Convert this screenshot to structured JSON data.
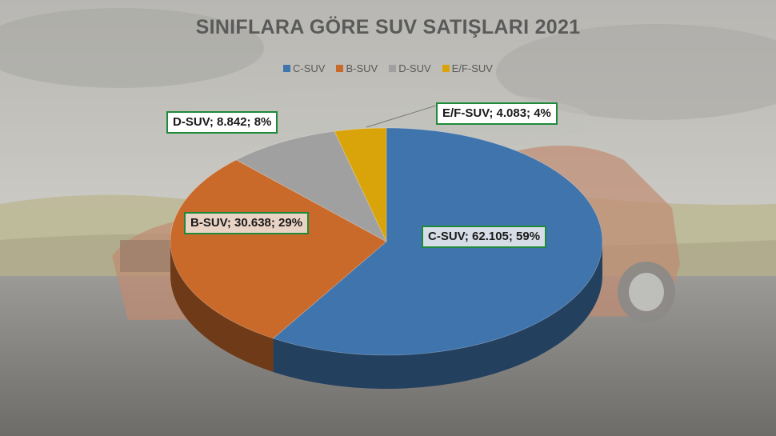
{
  "chart_data": {
    "type": "pie",
    "title": "SINIFLARA GÖRE SUV SATIŞLARI 2021",
    "legend_position": "top",
    "categories": [
      "C-SUV",
      "B-SUV",
      "D-SUV",
      "E/F-SUV"
    ],
    "values": [
      62105,
      30638,
      8842,
      4083
    ],
    "percentages": [
      59,
      29,
      8,
      4
    ],
    "colors": [
      "#3f74ad",
      "#c96a2a",
      "#a0a0a0",
      "#d9a40a"
    ],
    "labels": {
      "c": "C-SUV; 62.105; 59%",
      "b": "B-SUV; 30.638; 29%",
      "d": "D-SUV; 8.842; 8%",
      "ef": "E/F-SUV; 4.083; 4%"
    }
  }
}
